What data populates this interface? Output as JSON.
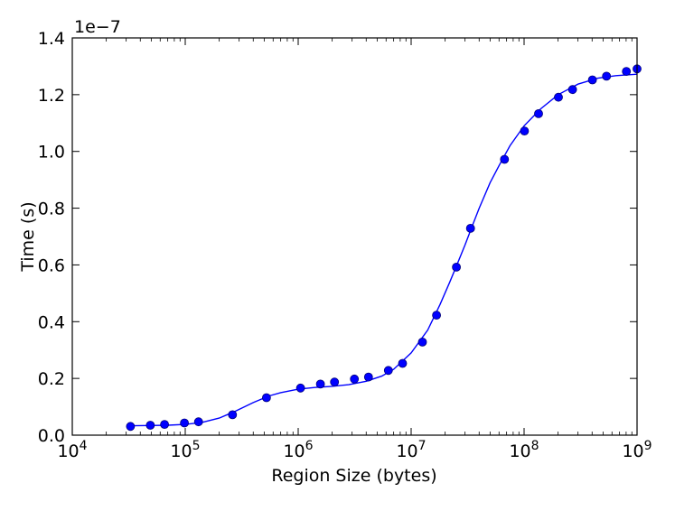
{
  "chart_data": {
    "type": "scatter",
    "xlabel": "Region Size (bytes)",
    "ylabel": "Time (s)",
    "y_offset_label": "1e−7",
    "x_scale": "log",
    "xlim": [
      10000,
      1000000000
    ],
    "ylim": [
      0.0,
      1.4
    ],
    "x_ticks": [
      {
        "value": 10000,
        "base": "10",
        "exp": "4"
      },
      {
        "value": 100000,
        "base": "10",
        "exp": "5"
      },
      {
        "value": 1000000,
        "base": "10",
        "exp": "6"
      },
      {
        "value": 10000000,
        "base": "10",
        "exp": "7"
      },
      {
        "value": 100000000,
        "base": "10",
        "exp": "8"
      },
      {
        "value": 1000000000,
        "base": "10",
        "exp": "9"
      }
    ],
    "y_ticks": [
      {
        "value": 0.0,
        "label": "0.0"
      },
      {
        "value": 0.2,
        "label": "0.2"
      },
      {
        "value": 0.4,
        "label": "0.4"
      },
      {
        "value": 0.6,
        "label": "0.6"
      },
      {
        "value": 0.8,
        "label": "0.8"
      },
      {
        "value": 1.0,
        "label": "1.0"
      },
      {
        "value": 1.2,
        "label": "1.2"
      },
      {
        "value": 1.4,
        "label": "1.4"
      }
    ],
    "grid": false,
    "colors": {
      "series": "#0000ff",
      "axes": "#000000"
    },
    "series": [
      {
        "type": "scatter",
        "x": [
          32768,
          49152,
          65536,
          98304,
          131072,
          262144,
          524288,
          1048576,
          1572864,
          2097152,
          3145728,
          4194304,
          6291456,
          8388608,
          12582912,
          16777216,
          25165824,
          33554432,
          67108864,
          100663296,
          134217728,
          201326592,
          268435456,
          402653184,
          536870912,
          805306368,
          1000000000
        ],
        "y": [
          0.031,
          0.035,
          0.038,
          0.043,
          0.047,
          0.072,
          0.132,
          0.166,
          0.18,
          0.187,
          0.198,
          0.205,
          0.228,
          0.253,
          0.328,
          0.423,
          0.592,
          0.729,
          0.972,
          1.072,
          1.133,
          1.191,
          1.218,
          1.252,
          1.265,
          1.282,
          1.291
        ]
      },
      {
        "type": "line",
        "x": [
          32768,
          50000,
          70000,
          100000,
          140000,
          200000,
          280000,
          400000,
          550000,
          700000,
          1000000,
          1400000,
          2000000,
          2800000,
          4000000,
          5500000,
          7000000,
          10000000,
          14000000,
          18000000,
          22000000,
          26000000,
          30000000,
          35000000,
          40000000,
          50000000,
          60000000,
          75000000,
          100000000,
          140000000,
          200000000,
          300000000,
          450000000,
          650000000,
          1000000000
        ],
        "y": [
          0.033,
          0.034,
          0.035,
          0.038,
          0.045,
          0.06,
          0.085,
          0.115,
          0.138,
          0.15,
          0.162,
          0.168,
          0.172,
          0.178,
          0.19,
          0.208,
          0.232,
          0.29,
          0.37,
          0.46,
          0.54,
          0.61,
          0.67,
          0.74,
          0.8,
          0.89,
          0.95,
          1.02,
          1.09,
          1.15,
          1.2,
          1.237,
          1.258,
          1.267,
          1.272
        ]
      }
    ]
  }
}
